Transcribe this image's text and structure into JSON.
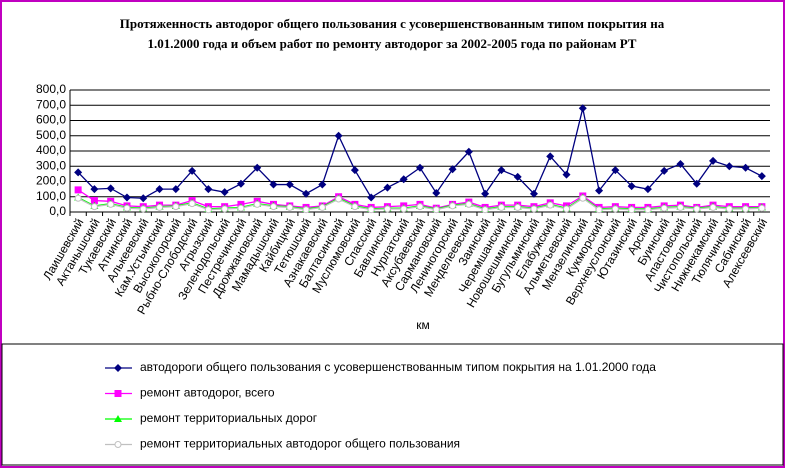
{
  "chart_data": {
    "type": "line",
    "title": [
      "Протяженность автодорог общего пользования с усовершенствованным типом покрытия на",
      "1.01.2000 года и объем работ по ремонту автодорог за 2002-2005 года по районам РТ"
    ],
    "xlabel": "км",
    "categories": [
      "Лаишевский",
      "Актанышский",
      "Тукаевский",
      "Атнинский",
      "Алькеевский",
      "Кам.Устьинский",
      "Высокогорский",
      "Рыбно-Слободский",
      "Агрызский",
      "Зеленодольский",
      "Пестречинский",
      "Дрожжановский",
      "Мамадышский",
      "Кайбицкий",
      "Тетюшский",
      "Азнакаевский",
      "Балтасинский",
      "Муслюмовский",
      "Спасский",
      "Бавлинский",
      "Нурлатский",
      "Аксубаевский",
      "Сармановский",
      "Лениногорский",
      "Менделеевский",
      "Заинский",
      "Черемшанский",
      "Новошешминский",
      "Бугульминский",
      "Елабужский",
      "Альметьевский",
      "Мензелинский",
      "Кукморский",
      "Верхнеуслонский",
      "Ютазинский",
      "Арский",
      "Буинский",
      "Апастовский",
      "Чистопольский",
      "Нижнекамский",
      "Тюлячинский",
      "Сабинский",
      "Алексеевский"
    ],
    "series": [
      {
        "name": "автодороги общего пользования с усовершенствованным типом покрытия на 1.01.2000 года",
        "color": "#000080",
        "marker": "diamond",
        "values": [
          260,
          150,
          155,
          95,
          90,
          150,
          150,
          270,
          150,
          130,
          185,
          290,
          180,
          180,
          120,
          180,
          500,
          275,
          95,
          160,
          215,
          290,
          125,
          280,
          395,
          120,
          275,
          230,
          120,
          365,
          245,
          680,
          140,
          275,
          170,
          150,
          270,
          315,
          185,
          335,
          300,
          290,
          235
        ]
      },
      {
        "name": "ремонт автодорог, всего",
        "color": "#ff00ff",
        "marker": "square",
        "values": [
          145,
          75,
          70,
          40,
          35,
          45,
          45,
          75,
          35,
          35,
          50,
          70,
          50,
          40,
          30,
          40,
          100,
          50,
          30,
          35,
          40,
          50,
          25,
          50,
          65,
          30,
          45,
          45,
          35,
          60,
          40,
          105,
          30,
          35,
          30,
          30,
          40,
          45,
          30,
          45,
          35,
          35,
          35
        ]
      },
      {
        "name": "ремонт территориальных дорог",
        "color": "#00ff00",
        "marker": "triangle",
        "values": [
          95,
          40,
          55,
          30,
          25,
          35,
          40,
          60,
          20,
          25,
          30,
          55,
          40,
          35,
          20,
          35,
          90,
          40,
          20,
          25,
          25,
          40,
          20,
          45,
          55,
          20,
          35,
          35,
          25,
          50,
          25,
          95,
          20,
          25,
          20,
          20,
          30,
          35,
          25,
          35,
          25,
          25,
          30
        ]
      },
      {
        "name": "ремонт территориальных автодорог общего пользования",
        "color": "#c0c0c0",
        "marker": "circle",
        "values": [
          90,
          35,
          50,
          25,
          20,
          30,
          35,
          55,
          15,
          20,
          25,
          50,
          35,
          30,
          15,
          30,
          85,
          35,
          15,
          20,
          20,
          35,
          15,
          40,
          50,
          15,
          30,
          30,
          20,
          45,
          20,
          90,
          15,
          20,
          15,
          15,
          25,
          30,
          20,
          30,
          20,
          20,
          25
        ]
      }
    ],
    "ylim": [
      0,
      800
    ],
    "yticks": [
      {
        "value": 0,
        "label": "0,0"
      },
      {
        "value": 100,
        "label": "100,0"
      },
      {
        "value": 200,
        "label": "200,0"
      },
      {
        "value": 300,
        "label": "300,0"
      },
      {
        "value": 400,
        "label": "400,0"
      },
      {
        "value": 500,
        "label": "500,0"
      },
      {
        "value": 600,
        "label": "600,0"
      },
      {
        "value": 700,
        "label": "700,0"
      },
      {
        "value": 800,
        "label": "800,0"
      }
    ],
    "grid": true,
    "legend": "bottom"
  }
}
